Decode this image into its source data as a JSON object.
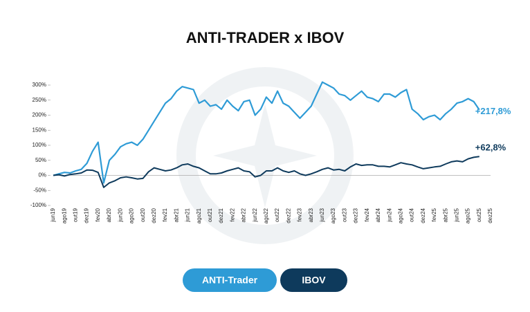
{
  "chart_data": {
    "type": "line",
    "title": "ANTI-TRADER x IBOV",
    "categories": [
      "jun19",
      null,
      "ago19",
      null,
      "out19",
      null,
      "dez19",
      null,
      "fev20",
      null,
      "abr20",
      null,
      "jun20",
      null,
      "ago20",
      null,
      "out20",
      null,
      "dez20",
      null,
      "fev21",
      null,
      "abr21",
      null,
      "jun21",
      null,
      "ago21",
      null,
      "out21",
      null,
      "dez21",
      null,
      "fev22",
      null,
      "abr22",
      null,
      "jun22",
      null,
      "ago22",
      null,
      "out22",
      null,
      "dez22",
      null,
      "fev23",
      null,
      "abr23",
      null,
      "jun23",
      null,
      "ago23",
      null,
      "out23",
      null,
      "dez23",
      null,
      "fev24",
      null,
      "abr24",
      null,
      "jun24",
      null,
      "ago24",
      null,
      "out24",
      null,
      "dez24",
      null,
      "fev25",
      null,
      "abr25",
      null,
      "jun25",
      null,
      "ago25",
      null,
      "out25",
      null,
      "dez25"
    ],
    "series": [
      {
        "name": "ANTI-Trader",
        "color": "#2e9bd6",
        "end_label": "+217,8%",
        "values": [
          0,
          5,
          10,
          8,
          15,
          20,
          40,
          80,
          110,
          -25,
          50,
          70,
          95,
          105,
          110,
          100,
          120,
          150,
          180,
          210,
          240,
          255,
          280,
          295,
          290,
          285,
          240,
          250,
          230,
          235,
          220,
          250,
          230,
          215,
          245,
          250,
          200,
          220,
          260,
          240,
          280,
          240,
          230,
          210,
          190,
          210,
          230,
          270,
          310,
          300,
          290,
          270,
          265,
          250,
          265,
          280,
          260,
          255,
          245,
          270,
          270,
          260,
          275,
          285,
          220,
          205,
          185,
          195,
          200,
          185,
          205,
          220,
          240,
          245,
          255,
          245,
          217.8,
          null,
          null
        ]
      },
      {
        "name": "IBOV",
        "color": "#0e3a5c",
        "end_label": "+62,8%",
        "values": [
          0,
          2,
          -2,
          3,
          5,
          8,
          18,
          17,
          10,
          -40,
          -25,
          -18,
          -8,
          -5,
          -8,
          -12,
          -10,
          12,
          25,
          20,
          15,
          18,
          25,
          35,
          38,
          30,
          25,
          15,
          5,
          5,
          8,
          15,
          20,
          25,
          15,
          12,
          -5,
          0,
          15,
          15,
          25,
          15,
          10,
          15,
          5,
          0,
          5,
          12,
          20,
          25,
          18,
          20,
          15,
          28,
          38,
          33,
          35,
          35,
          30,
          30,
          28,
          35,
          42,
          38,
          35,
          28,
          22,
          25,
          28,
          30,
          38,
          45,
          48,
          45,
          55,
          60,
          62.8,
          null,
          null
        ]
      }
    ],
    "ylim": [
      -100,
      300
    ],
    "yticks": [
      {
        "value": -100,
        "label": "-100%"
      },
      {
        "value": -50,
        "label": "-50%"
      },
      {
        "value": 0,
        "label": "0%"
      },
      {
        "value": 50,
        "label": "50%"
      },
      {
        "value": 100,
        "label": "100%"
      },
      {
        "value": 150,
        "label": "150%"
      },
      {
        "value": 200,
        "label": "200%"
      },
      {
        "value": 250,
        "label": "250%"
      },
      {
        "value": 300,
        "label": "300%"
      }
    ]
  }
}
